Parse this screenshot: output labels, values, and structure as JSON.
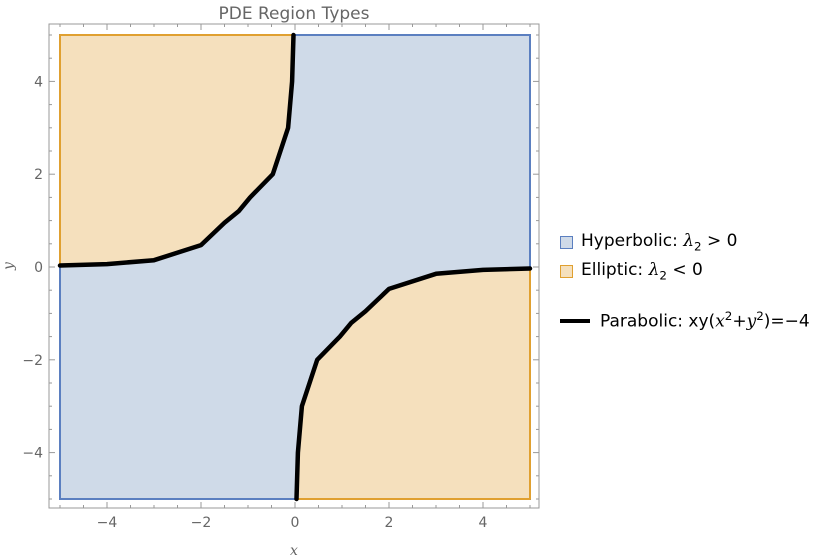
{
  "chart_data": {
    "type": "area",
    "title": "PDE Region Types",
    "xlabel": "x",
    "ylabel": "y",
    "xlim": [
      -5,
      5
    ],
    "ylim": [
      -5,
      5
    ],
    "xticks": [
      -4,
      -2,
      0,
      2,
      4
    ],
    "yticks": [
      -4,
      -2,
      0,
      2,
      4
    ],
    "tick_labels_x": [
      "−4",
      "−2",
      "0",
      "2",
      "4"
    ],
    "tick_labels_y": [
      "−4",
      "−2",
      "0",
      "2",
      "4"
    ],
    "grid": false,
    "legend_position": "right",
    "regions": [
      {
        "name": "Hyperbolic",
        "condition": "λ2 > 0",
        "fill": "#cfdae8",
        "stroke": "#5b7fc0"
      },
      {
        "name": "Elliptic",
        "condition": "λ2 < 0",
        "fill": "#f5e0bd",
        "stroke": "#e0a030"
      }
    ],
    "curve": {
      "name": "Parabolic",
      "equation": "xy(x^2+y^2) = −4",
      "color": "#000000",
      "branches": [
        [
          [
            -5,
            0.032
          ],
          [
            -4,
            0.062
          ],
          [
            -3,
            0.147
          ],
          [
            -2,
            0.472
          ],
          [
            -1.5,
            0.955
          ],
          [
            -1.2,
            1.2
          ],
          [
            -0.955,
            1.5
          ],
          [
            -0.472,
            2
          ],
          [
            -0.147,
            3
          ],
          [
            -0.062,
            4
          ],
          [
            -0.032,
            5
          ]
        ],
        [
          [
            0.032,
            -5
          ],
          [
            0.062,
            -4
          ],
          [
            0.147,
            -3
          ],
          [
            0.472,
            -2
          ],
          [
            0.955,
            -1.5
          ],
          [
            1.2,
            -1.2
          ],
          [
            1.5,
            -0.955
          ],
          [
            2,
            -0.472
          ],
          [
            3,
            -0.147
          ],
          [
            4,
            -0.062
          ],
          [
            5,
            -0.032
          ]
        ]
      ]
    }
  },
  "legend": {
    "hyperbolic_label": "Hyperbolic: ",
    "hyperbolic_lambda": "λ",
    "hyperbolic_sub": "2",
    "hyperbolic_rel": " > 0",
    "elliptic_label": "Elliptic: ",
    "elliptic_lambda": "λ",
    "elliptic_sub": "2",
    "elliptic_rel": " < 0",
    "parabolic_label": "Parabolic: xy(",
    "parabolic_x": "x",
    "parabolic_x_exp": "2",
    "parabolic_plus": "+",
    "parabolic_y": "y",
    "parabolic_y_exp": "2",
    "parabolic_rhs": ")=−4"
  }
}
